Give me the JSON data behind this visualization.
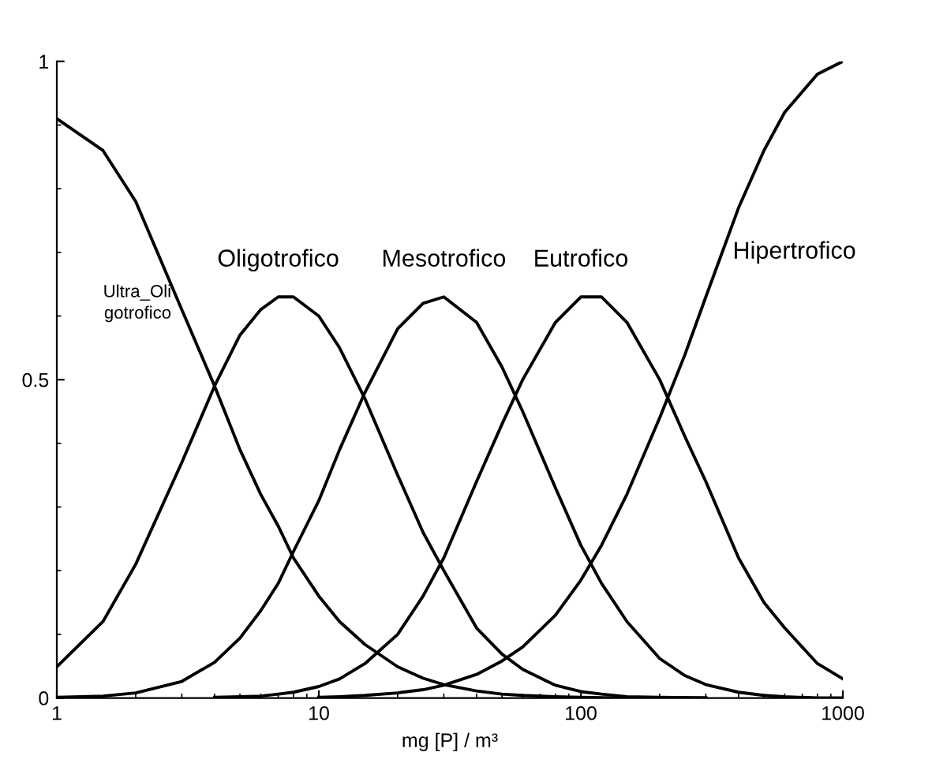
{
  "chart_data": {
    "type": "line",
    "xlabel": "mg [P] / m³",
    "log": "x",
    "grid": false,
    "legend": false,
    "marker": "none",
    "line_style": "solid",
    "xlim": [
      1,
      1000
    ],
    "xticks": [
      1,
      10,
      100,
      1000
    ],
    "ylim": [
      0,
      1
    ],
    "yticks": [
      0,
      0.5,
      1
    ],
    "series": [
      {
        "name": "Ultra_Oli\ngotrofico",
        "color": "#000000",
        "x": [
          1,
          1.5,
          2,
          3,
          4,
          5,
          6,
          7,
          8,
          10,
          12,
          15,
          20,
          25,
          30,
          40,
          50,
          60,
          80,
          100,
          150,
          200,
          300
        ],
        "values": [
          0.91,
          0.86,
          0.78,
          0.61,
          0.49,
          0.39,
          0.32,
          0.27,
          0.22,
          0.16,
          0.12,
          0.084,
          0.049,
          0.031,
          0.021,
          0.011,
          0.006,
          0.004,
          0.002,
          0.001,
          0,
          0,
          0
        ]
      },
      {
        "name": "Oligotrofico",
        "color": "#000000",
        "x": [
          1,
          1.5,
          2,
          3,
          4,
          5,
          6,
          7,
          8,
          10,
          12,
          15,
          20,
          25,
          30,
          40,
          50,
          60,
          80,
          100,
          120,
          150,
          200,
          300
        ],
        "values": [
          0.049,
          0.12,
          0.21,
          0.37,
          0.49,
          0.57,
          0.61,
          0.63,
          0.63,
          0.6,
          0.55,
          0.47,
          0.35,
          0.26,
          0.2,
          0.11,
          0.069,
          0.045,
          0.02,
          0.01,
          0.006,
          0.002,
          0.001,
          0
        ]
      },
      {
        "name": "Mesotrofico",
        "color": "#000000",
        "x": [
          1,
          1.5,
          2,
          3,
          4,
          5,
          6,
          7,
          8,
          10,
          12,
          15,
          20,
          25,
          30,
          40,
          50,
          60,
          80,
          100,
          120,
          150,
          200,
          250,
          300,
          400,
          500,
          600,
          800,
          1000
        ],
        "values": [
          0.001,
          0.003,
          0.008,
          0.026,
          0.056,
          0.094,
          0.137,
          0.18,
          0.23,
          0.31,
          0.39,
          0.48,
          0.58,
          0.62,
          0.63,
          0.59,
          0.52,
          0.45,
          0.33,
          0.24,
          0.18,
          0.12,
          0.062,
          0.035,
          0.021,
          0.009,
          0.004,
          0.002,
          0,
          0
        ]
      },
      {
        "name": "Eutrofico",
        "color": "#000000",
        "x": [
          4,
          5,
          6,
          7,
          8,
          10,
          12,
          15,
          20,
          25,
          30,
          40,
          50,
          60,
          80,
          100,
          120,
          150,
          200,
          250,
          300,
          400,
          500,
          600,
          800,
          1000
        ],
        "values": [
          0.001,
          0.002,
          0.003,
          0.006,
          0.009,
          0.018,
          0.03,
          0.054,
          0.1,
          0.16,
          0.22,
          0.34,
          0.43,
          0.5,
          0.59,
          0.63,
          0.63,
          0.59,
          0.5,
          0.41,
          0.34,
          0.22,
          0.15,
          0.11,
          0.054,
          0.03
        ]
      },
      {
        "name": "Hipertrofico",
        "color": "#000000",
        "x": [
          10,
          12,
          15,
          20,
          25,
          30,
          40,
          50,
          60,
          80,
          100,
          120,
          150,
          200,
          250,
          300,
          400,
          500,
          600,
          800,
          1000
        ],
        "values": [
          0.001,
          0.002,
          0.004,
          0.008,
          0.013,
          0.02,
          0.037,
          0.058,
          0.08,
          0.13,
          0.185,
          0.24,
          0.32,
          0.44,
          0.54,
          0.63,
          0.77,
          0.86,
          0.92,
          0.98,
          1.0
        ]
      }
    ]
  }
}
